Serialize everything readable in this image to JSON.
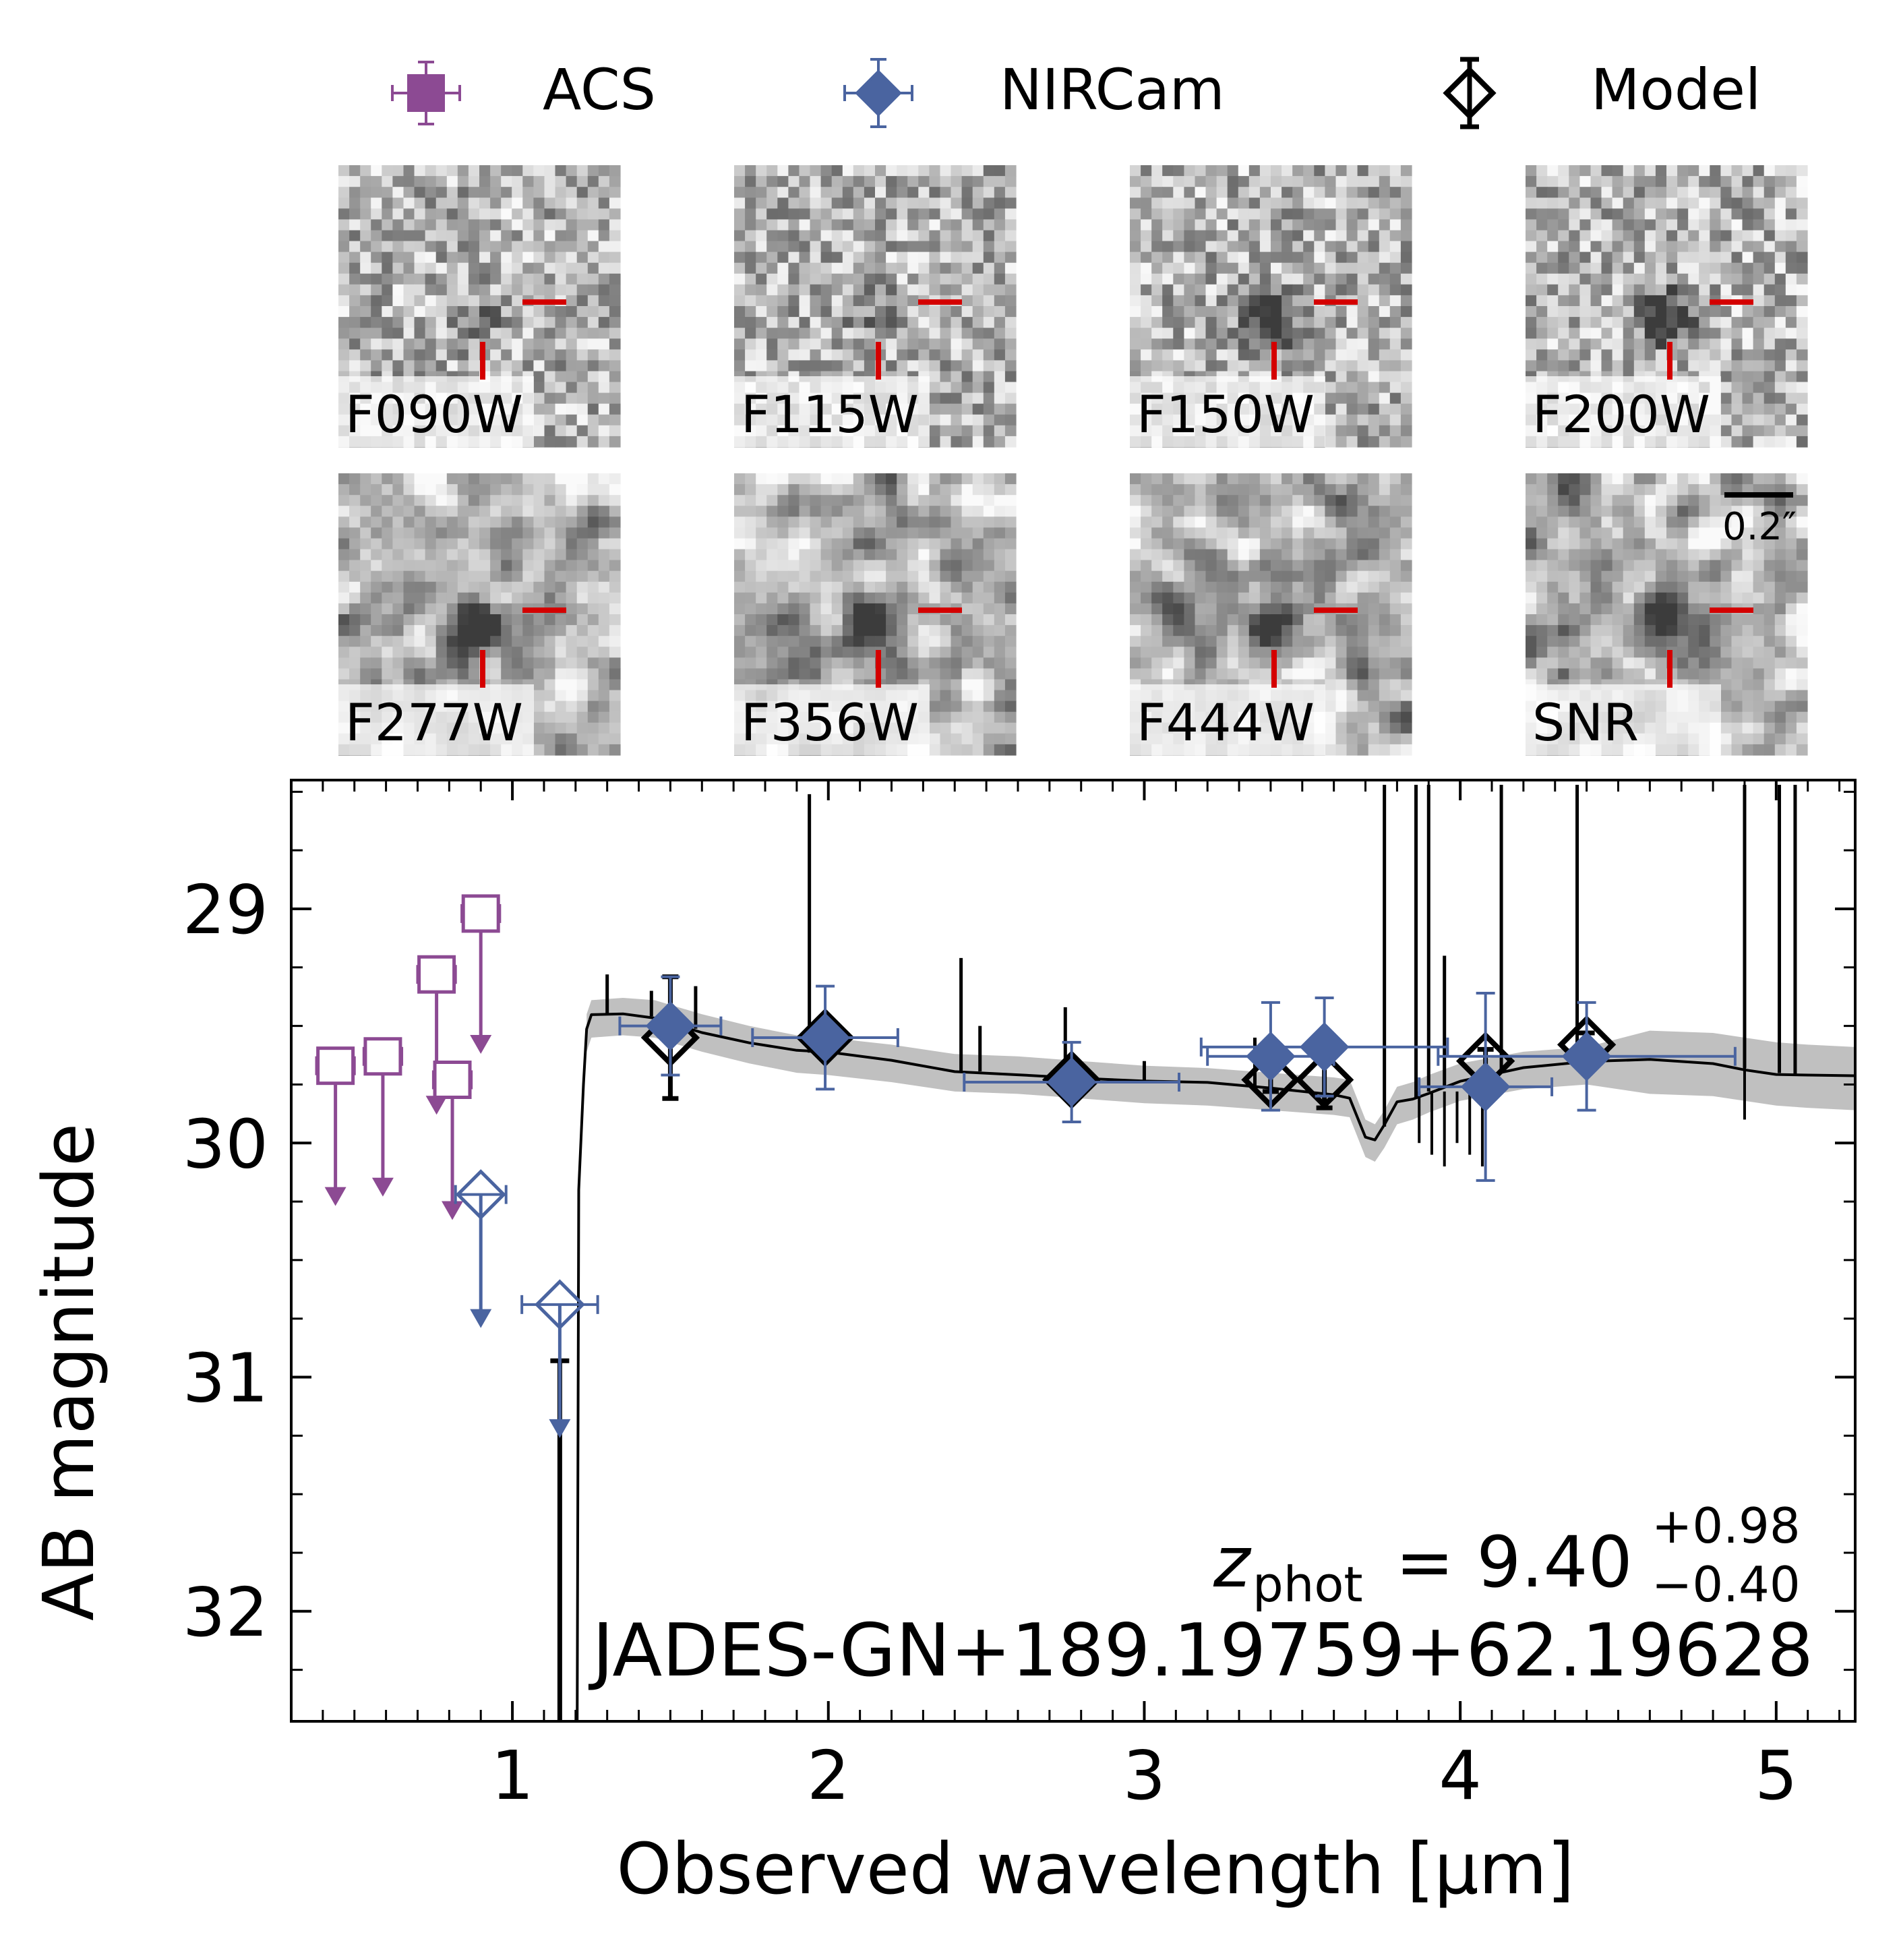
{
  "legend": {
    "items": [
      {
        "label": "ACS",
        "color": "#8c4a93",
        "marker": "square"
      },
      {
        "label": "NIRCam",
        "color": "#4a64a0",
        "marker": "diamond"
      },
      {
        "label": "Model",
        "color": "#000000",
        "marker": "open-diamond"
      }
    ]
  },
  "cutouts": {
    "labels": [
      "F090W",
      "F115W",
      "F150W",
      "F200W",
      "F277W",
      "F356W",
      "F444W",
      "SNR"
    ],
    "scalebar_label": "0.2″"
  },
  "colors": {
    "acs": "#8c4a93",
    "nircam": "#4a64a0",
    "model": "#000000",
    "model_band": "#c0c0c0",
    "crosshair": "#d40000"
  },
  "chart_data": {
    "type": "scatter",
    "xlabel": "Observed wavelength  [μm]",
    "ylabel": "AB magnitude",
    "xlim": [
      0.3,
      5.25
    ],
    "ylim": [
      32.47,
      28.45
    ],
    "xticks": [
      1,
      2,
      3,
      4,
      5
    ],
    "yticks": [
      29,
      30,
      31,
      32
    ],
    "annotation": {
      "z_label_main": "z",
      "z_label_sub": "phot",
      "z_value": "= 9.40",
      "z_err_up": "+0.98",
      "z_err_down": "−0.40",
      "object_name": "JADES-GN+189.19759+62.19628"
    },
    "series": [
      {
        "name": "ACS",
        "upper_limits": [
          {
            "x": 0.44,
            "y": 29.67,
            "xerr": 0.06
          },
          {
            "x": 0.59,
            "y": 29.63,
            "xerr": 0.06
          },
          {
            "x": 0.76,
            "y": 29.28,
            "xerr": 0.06
          },
          {
            "x": 0.81,
            "y": 29.73,
            "xerr": 0.06
          },
          {
            "x": 0.9,
            "y": 29.02,
            "xerr": 0.06
          }
        ]
      },
      {
        "name": "NIRCam",
        "points": [
          {
            "x": 1.5,
            "y": 29.5,
            "xerr": 0.16,
            "yerr": 0.21
          },
          {
            "x": 1.99,
            "y": 29.55,
            "xerr": 0.23,
            "yerr": 0.22
          },
          {
            "x": 2.77,
            "y": 29.74,
            "xerr": 0.34,
            "yerr": 0.17
          },
          {
            "x": 3.57,
            "y": 29.59,
            "xerr": 0.39,
            "yerr": 0.21
          },
          {
            "x": 3.4,
            "y": 29.63,
            "xerr": 0.2,
            "yerr": 0.23
          },
          {
            "x": 4.08,
            "y": 29.76,
            "xerr": 0.21,
            "yerr": 0.4
          },
          {
            "x": 4.4,
            "y": 29.63,
            "xerr": 0.47,
            "yerr": 0.23
          }
        ],
        "upper_limits": [
          {
            "x": 0.9,
            "y": 30.22,
            "xerr": 0.08
          },
          {
            "x": 1.15,
            "y": 30.69,
            "xerr": 0.12
          }
        ]
      },
      {
        "name": "Model",
        "points": [
          {
            "x": 1.5,
            "y": 29.55,
            "yerr": 0.26
          },
          {
            "x": 1.99,
            "y": 29.55,
            "yerr": 0.05
          },
          {
            "x": 2.77,
            "y": 29.73,
            "yerr": 0.05
          },
          {
            "x": 3.4,
            "y": 29.73,
            "yerr": 0.05
          },
          {
            "x": 3.57,
            "y": 29.73,
            "yerr": 0.12
          },
          {
            "x": 4.08,
            "y": 29.65,
            "yerr": 0.05
          },
          {
            "x": 4.4,
            "y": 29.58,
            "yerr": 0.05
          }
        ],
        "lowerbar_point": {
          "x": 1.15,
          "y": 30.93
        },
        "sed": [
          [
            1.17,
            32.47
          ],
          [
            1.205,
            32.47
          ],
          [
            1.21,
            30.2
          ],
          [
            1.225,
            29.75
          ],
          [
            1.235,
            29.52
          ],
          [
            1.25,
            29.46
          ],
          [
            1.35,
            29.45
          ],
          [
            1.45,
            29.46
          ],
          [
            1.6,
            29.52
          ],
          [
            1.75,
            29.57
          ],
          [
            1.9,
            29.61
          ],
          [
            2.0,
            29.62
          ],
          [
            2.2,
            29.65
          ],
          [
            2.4,
            29.69
          ],
          [
            2.6,
            29.7
          ],
          [
            2.8,
            29.72
          ],
          [
            3.0,
            29.74
          ],
          [
            3.2,
            29.75
          ],
          [
            3.4,
            29.77
          ],
          [
            3.6,
            29.79
          ],
          [
            3.65,
            29.8
          ],
          [
            3.7,
            29.97
          ],
          [
            3.73,
            29.99
          ],
          [
            3.76,
            29.93
          ],
          [
            3.8,
            29.83
          ],
          [
            3.85,
            29.81
          ],
          [
            3.9,
            29.78
          ],
          [
            4.0,
            29.73
          ],
          [
            4.2,
            29.68
          ],
          [
            4.4,
            29.66
          ],
          [
            4.6,
            29.65
          ],
          [
            4.8,
            29.66
          ],
          [
            4.9,
            29.68
          ],
          [
            5.0,
            29.7
          ],
          [
            5.1,
            29.71
          ],
          [
            5.25,
            29.72
          ]
        ],
        "emission_lines": [
          {
            "x": 1.3,
            "y": 29.28
          },
          {
            "x": 1.44,
            "y": 29.35
          },
          {
            "x": 1.58,
            "y": 29.33
          },
          {
            "x": 1.94,
            "y": 28.51
          },
          {
            "x": 2.42,
            "y": 29.21
          },
          {
            "x": 2.48,
            "y": 29.5
          },
          {
            "x": 2.75,
            "y": 29.42
          },
          {
            "x": 3.0,
            "y": 29.65
          },
          {
            "x": 3.35,
            "y": 29.55
          },
          {
            "x": 3.76,
            "y": 28.47
          },
          {
            "x": 3.86,
            "y": 28.47
          },
          {
            "x": 3.9,
            "y": 28.47
          },
          {
            "x": 3.95,
            "y": 29.2
          },
          {
            "x": 4.13,
            "y": 28.47
          },
          {
            "x": 4.37,
            "y": 28.47
          },
          {
            "x": 4.9,
            "y": 28.47
          },
          {
            "x": 5.01,
            "y": 28.47
          },
          {
            "x": 5.06,
            "y": 28.47
          }
        ]
      }
    ]
  }
}
